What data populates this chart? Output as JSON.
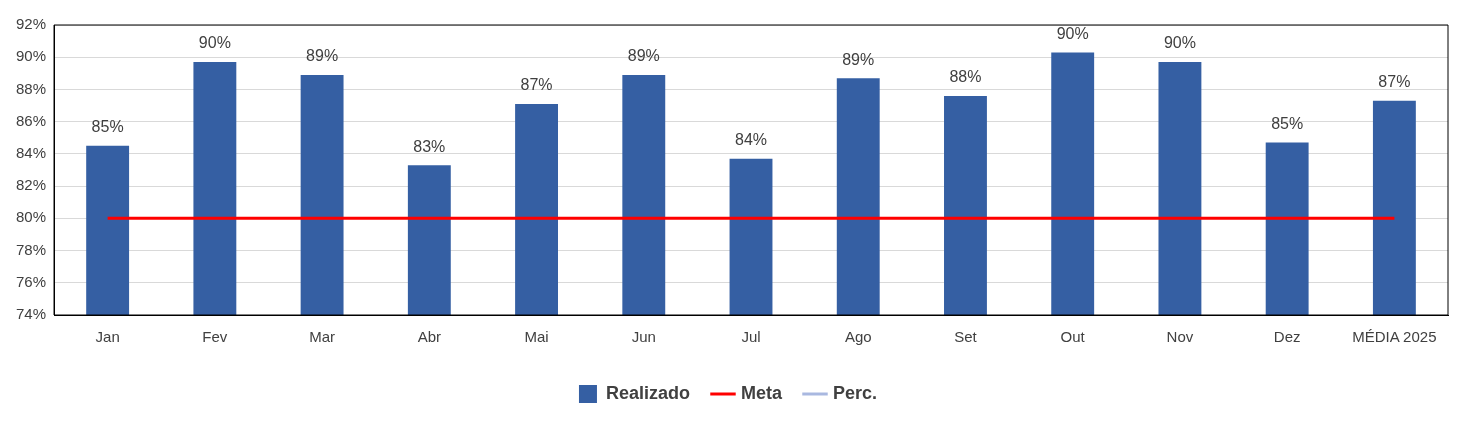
{
  "chart_data": {
    "type": "bar",
    "categories": [
      "Jan",
      "Fev",
      "Mar",
      "Abr",
      "Mai",
      "Jun",
      "Jul",
      "Ago",
      "Set",
      "Out",
      "Nov",
      "Dez",
      "MÉDIA 2025"
    ],
    "series": [
      {
        "name": "Realizado",
        "color": "#355fa3",
        "values": [
          84.5,
          89.7,
          88.9,
          83.3,
          87.1,
          88.9,
          83.7,
          88.7,
          87.6,
          90.3,
          89.7,
          84.7,
          87.3
        ],
        "value_labels": [
          "85%",
          "90%",
          "89%",
          "83%",
          "87%",
          "89%",
          "84%",
          "89%",
          "88%",
          "90%",
          "90%",
          "85%",
          "87%"
        ]
      },
      {
        "name": "Meta",
        "type": "line",
        "color": "#ff0000",
        "values": [
          80,
          80,
          80,
          80,
          80,
          80,
          80,
          80,
          80,
          80,
          80,
          80,
          80
        ]
      },
      {
        "name": "Perc.",
        "type": "line",
        "color": "#a9b8e0",
        "values": [
          null,
          null,
          null,
          null,
          null,
          null,
          null,
          null,
          null,
          null,
          null,
          null,
          null
        ]
      }
    ],
    "ylim": [
      74,
      92
    ],
    "yticks": [
      {
        "value": 74,
        "label": "74%"
      },
      {
        "value": 76,
        "label": "76%"
      },
      {
        "value": 78,
        "label": "78%"
      },
      {
        "value": 80,
        "label": "80%"
      },
      {
        "value": 82,
        "label": "82%"
      },
      {
        "value": 84,
        "label": "84%"
      },
      {
        "value": 86,
        "label": "86%"
      },
      {
        "value": 88,
        "label": "88%"
      },
      {
        "value": 90,
        "label": "90%"
      },
      {
        "value": 92,
        "label": "92%"
      }
    ],
    "grid": "y",
    "legend": "bottom",
    "marker": "none",
    "line_style": "solid"
  }
}
